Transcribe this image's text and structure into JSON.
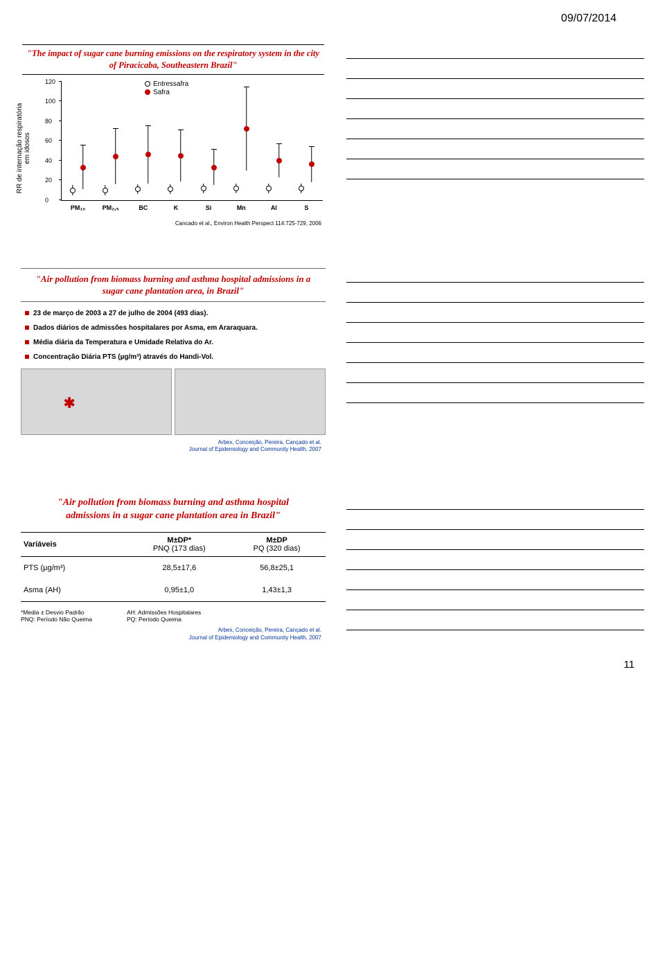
{
  "date_header": "09/07/2014",
  "page_number": "11",
  "slide1": {
    "title": "\"The impact of sugar cane burning emissions on the respiratory system in the city of Piracicaba, Southeastern Brazil\"",
    "ylabel": "RR de internação respiratória\nem idosos",
    "legend_open": "Entressafra",
    "legend_fill": "Safra",
    "citation": "Cancado et al., Environ Health Perspect 114:725-729, 2006",
    "ylim": [
      0,
      120
    ],
    "ystep": 20,
    "yticks": [
      "0",
      "20",
      "40",
      "60",
      "80",
      "100",
      "120"
    ],
    "categories": [
      "PM₁₀",
      "PM₂,₅",
      "BC",
      "K",
      "Si",
      "Mn",
      "Al",
      "S"
    ],
    "data_open": [
      10,
      10,
      11,
      11,
      12,
      12,
      12,
      12
    ],
    "data_fill": [
      33,
      44,
      46,
      45,
      33,
      72,
      40,
      36
    ],
    "err_open": [
      5,
      5,
      5,
      5,
      5,
      5,
      5,
      5
    ],
    "err_fill": [
      22,
      28,
      29,
      26,
      18,
      42,
      17,
      18
    ],
    "colors": {
      "open_stroke": "#000000",
      "fill": "#c00000",
      "axis": "#000000"
    }
  },
  "slide2": {
    "title": "\"Air pollution from biomass burning and asthma hospital admissions in a sugar cane plantation area, in Brazil\"",
    "bullets": [
      "23 de março de 2003 a 27 de julho de 2004 (493 dias).",
      "Dados diários de admissões hospitalares por Asma, em Araraquara.",
      "Média diária da Temperatura e Umidade Relativa do Ar.",
      "Concentração Diária PTS (µg/m³) através do Handi-Vol."
    ],
    "citation_line1": "Arbex, Conceição, Pereira, Cançado et al.",
    "citation_line2": "Journal of Epidemiology and Community Health, 2007"
  },
  "slide3": {
    "title": "\"Air pollution from biomass burning and asthma hospital admissions in a sugar cane plantation area in Brazil\"",
    "table": {
      "headers": [
        "Variáveis",
        "M±DP*",
        "M±DP"
      ],
      "subheaders": [
        "",
        "PNQ (173 dias)",
        "PQ (320 dias)"
      ],
      "rows": [
        {
          "var": "PTS (µg/m³)",
          "c1": "28,5±17,6",
          "c2": "56,8±25,1"
        },
        {
          "var": "Asma (AH)",
          "c1": "0,95±1,0",
          "c2": "1,43±1,3"
        }
      ]
    },
    "footnote_left": "*Media ± Desvio Padrão\nPNQ: Período Não Queima",
    "footnote_right": "AH: Admissões Hospitalares\nPQ: Período Queima",
    "citation_line1": "Arbex, Conceição, Pereira, Cançado et al.",
    "citation_line2": "Journal of Epidemiology and Community Health, 2007"
  }
}
